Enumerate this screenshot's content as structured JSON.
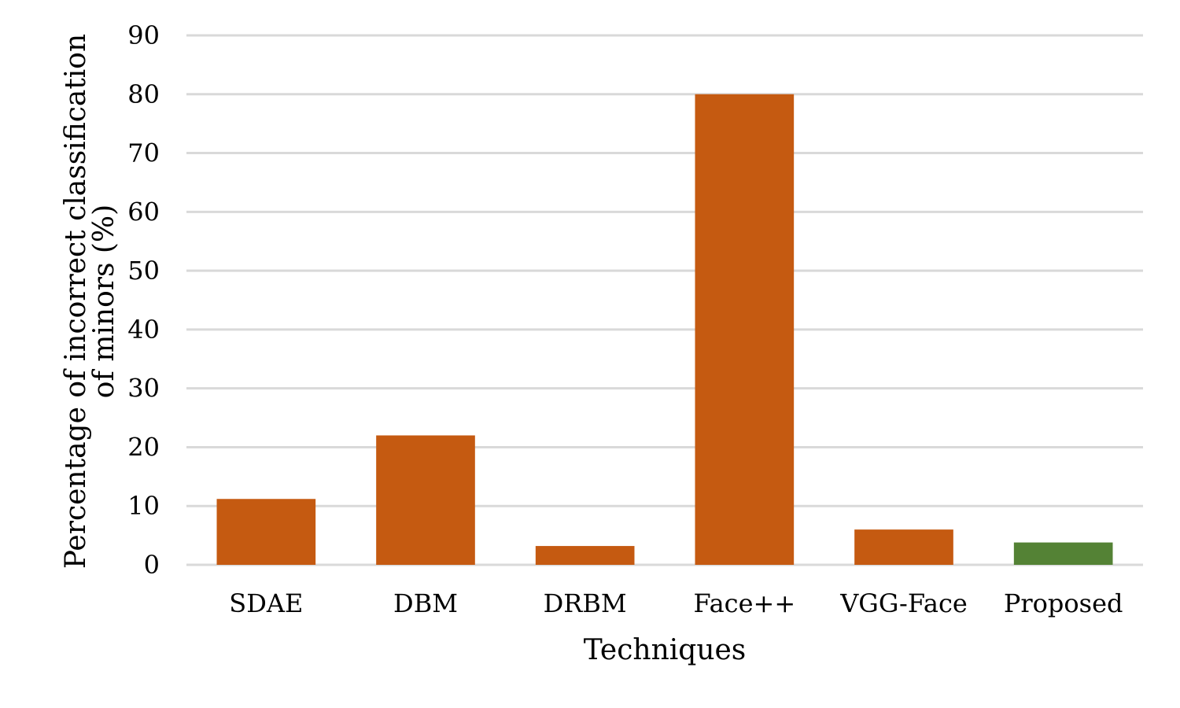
{
  "chart_data": {
    "type": "bar",
    "categories": [
      "SDAE",
      "DBM",
      "DRBM",
      "Face++",
      "VGG-Face",
      "Proposed"
    ],
    "values": [
      11.2,
      22,
      3.2,
      80,
      6,
      3.8
    ],
    "bar_colors": [
      "#c55a11",
      "#c55a11",
      "#c55a11",
      "#c55a11",
      "#c55a11",
      "#548235"
    ],
    "title": "",
    "xlabel": "Techniques",
    "ylabel_lines": [
      "Percentage of incorrect classification",
      "of minors (%)"
    ],
    "ylim": [
      0,
      90
    ],
    "yticks": [
      0,
      10,
      20,
      30,
      40,
      50,
      60,
      70,
      80,
      90
    ],
    "grid": true,
    "legend": "none"
  }
}
